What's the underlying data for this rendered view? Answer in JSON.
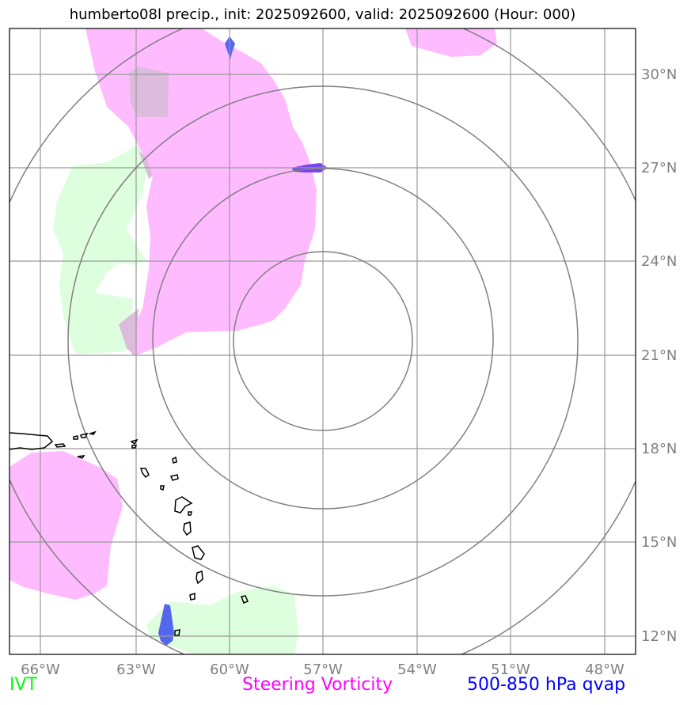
{
  "title": "humberto08l precip., init: 2025092600, valid: 2025092600 (Hour: 000)",
  "axes": {
    "lon_labels": [
      "66°W",
      "63°W",
      "60°W",
      "57°W",
      "54°W",
      "51°W",
      "48°W"
    ],
    "lon_values": [
      -66,
      -63,
      -60,
      -57,
      -54,
      -51,
      -48
    ],
    "lat_labels": [
      "30°N",
      "27°N",
      "24°N",
      "21°N",
      "18°N",
      "15°N",
      "12°N"
    ],
    "lat_values": [
      30,
      27,
      24,
      21,
      18,
      15,
      12
    ],
    "lon_range": [
      -67,
      -47
    ],
    "lat_range": [
      11.5,
      31.5
    ]
  },
  "legend": {
    "ivt": "IVT",
    "steering_vorticity": "Steering Vorticity",
    "qvap": "500-850 hPa qvap"
  },
  "colors": {
    "ivt": "#00ff00",
    "ivt_fill": "#ddffdd",
    "steering_vorticity": "#ff00ff",
    "vorticity_fill": "#ffbbff",
    "qvap": "#0000ff",
    "qvap_fill": "#5566ee",
    "grid": "#999999",
    "rings": "#808080",
    "coast": "#000000"
  },
  "storm_center": {
    "lon": -57,
    "lat": 21
  }
}
